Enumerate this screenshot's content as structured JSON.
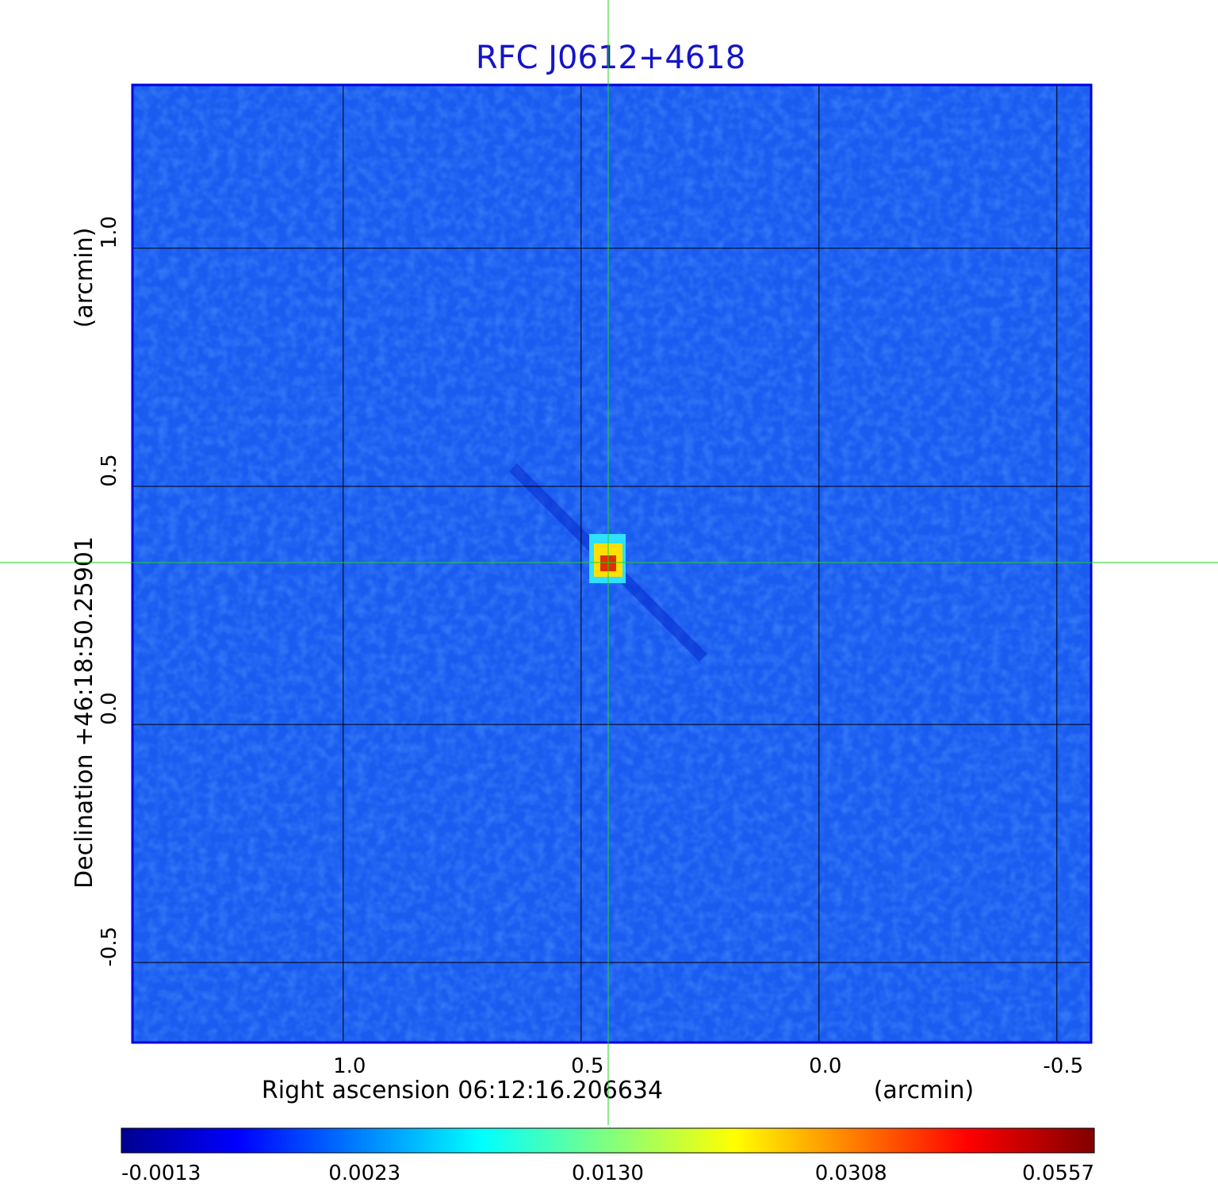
{
  "chart_data": {
    "type": "image",
    "title": "RFC J0612+4618",
    "xlabel": "Right ascension  06:12:16.206634",
    "xunit": "(arcmin)",
    "ylabel": "Declination  +46:18:50.25901",
    "yunit": "(arcmin)",
    "xlim": [
      1.443,
      -0.572
    ],
    "ylim": [
      -0.668,
      1.343
    ],
    "xticks": [
      {
        "value": 1,
        "label": "1.0"
      },
      0.5,
      {
        "value": 0,
        "label": "0.0"
      },
      -0.5
    ],
    "yticks": [
      -0.5,
      {
        "value": 0,
        "label": "0.0"
      },
      0.5,
      {
        "value": 1,
        "label": "1.0"
      }
    ],
    "grid": true,
    "crosshair": {
      "x": 0.443,
      "y": 0.34
    },
    "source": {
      "x": 0.443,
      "y": 0.34,
      "peak": 0.0557
    },
    "colorbar": {
      "lim": [
        -0.0013,
        0.0557
      ],
      "ticks": [
        -0.0013,
        0.0023,
        {
          "value": 0.013,
          "label": "0.0130"
        },
        0.0308,
        0.0557
      ]
    }
  }
}
